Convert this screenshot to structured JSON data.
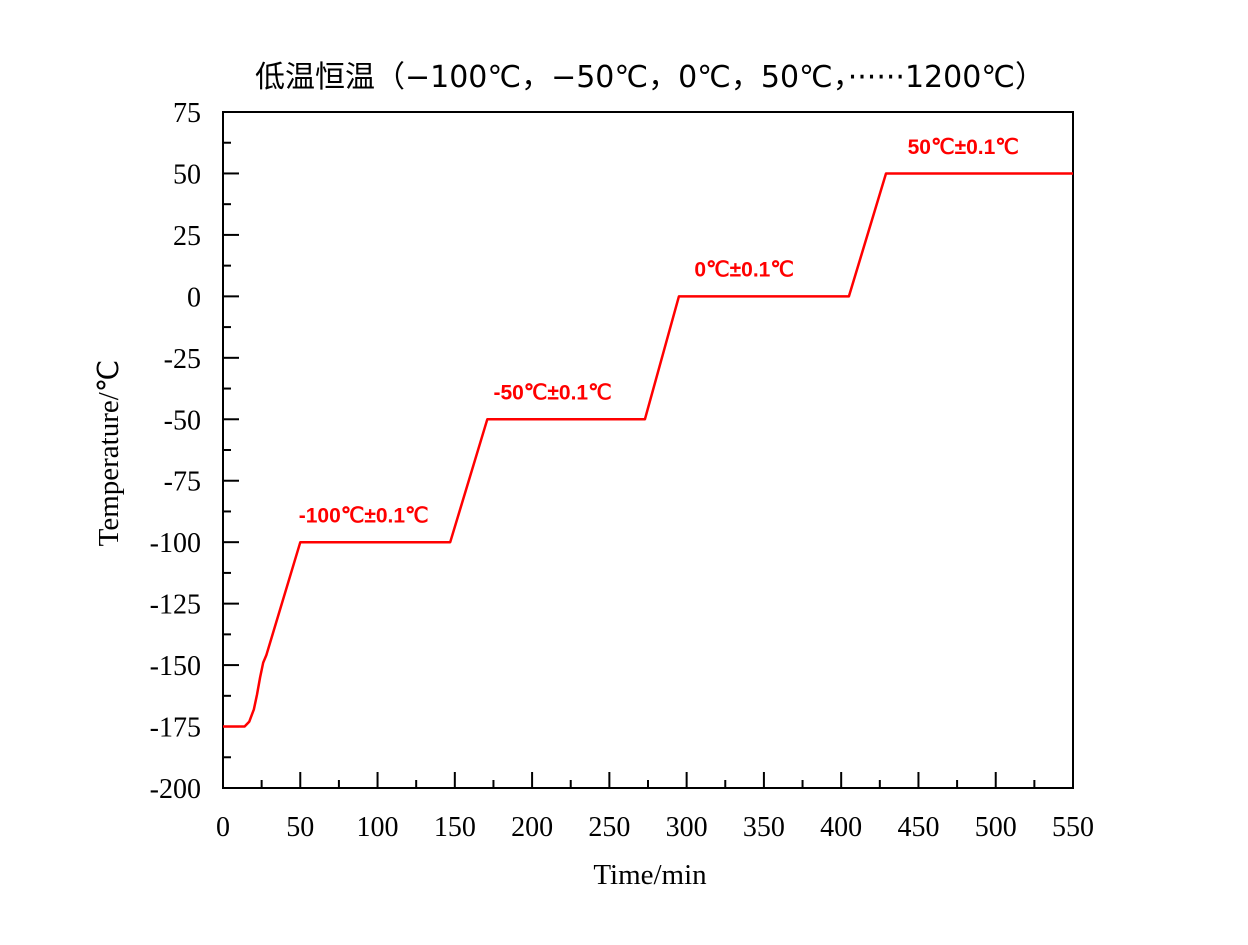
{
  "chart_data": {
    "type": "line",
    "title": "低温恒温（−100℃，−50℃，0℃，50℃，······1200℃）",
    "xlabel": "Time/min",
    "ylabel": "Temperature/℃",
    "xlim": [
      0,
      550
    ],
    "ylim": [
      -200,
      75
    ],
    "x_ticks": [
      "0",
      "50",
      "100",
      "150",
      "200",
      "250",
      "300",
      "350",
      "400",
      "450",
      "500",
      "550"
    ],
    "y_ticks": [
      "75",
      "50",
      "25",
      "0",
      "-25",
      "-50",
      "-75",
      "-100",
      "-125",
      "-150",
      "-175",
      "-200"
    ],
    "grid": false,
    "series": [
      {
        "color": "#ff0000",
        "x": [
          0,
          14,
          17,
          20,
          22,
          24,
          26,
          28,
          50,
          147,
          171,
          273,
          295,
          405,
          429,
          550
        ],
        "y": [
          -175,
          -175,
          -173,
          -168,
          -162,
          -155,
          -149,
          -146,
          -100,
          -100,
          -50,
          -50,
          0,
          0,
          50,
          50
        ]
      }
    ],
    "annotations": [
      {
        "text": "-100℃±0.1℃",
        "x": 49,
        "y": -92,
        "color": "#ff0000"
      },
      {
        "text": "-50℃±0.1℃",
        "x": 175,
        "y": -42,
        "color": "#ff0000"
      },
      {
        "text": "0℃±0.1℃",
        "x": 305,
        "y": 8,
        "color": "#ff0000"
      },
      {
        "text": "50℃±0.1℃",
        "x": 443,
        "y": 58,
        "color": "#ff0000"
      }
    ]
  }
}
